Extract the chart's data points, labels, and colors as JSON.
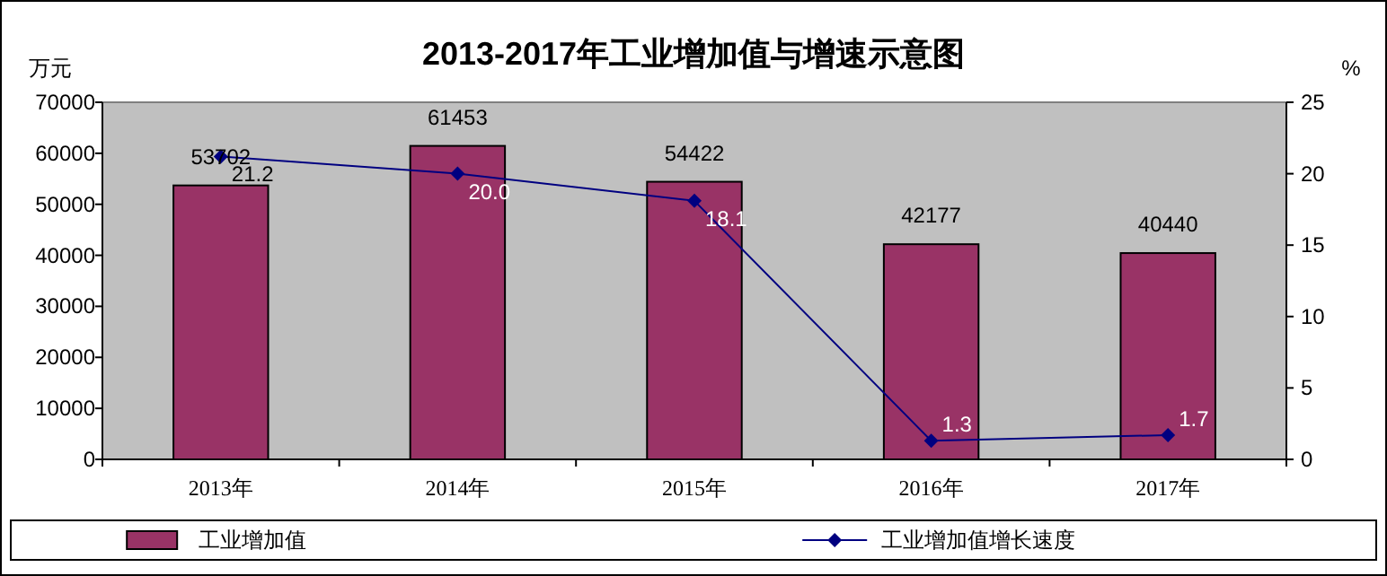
{
  "chart_data": {
    "type": "bar",
    "title": "2013-2017年工业增加值与增速示意图",
    "ylabel": "万元",
    "y2label": "%",
    "categories": [
      "2013年",
      "2014年",
      "2015年",
      "2016年",
      "2017年"
    ],
    "series": [
      {
        "name": "工业增加值",
        "color": "#993366",
        "values": [
          53702,
          61453,
          54422,
          42177,
          40440
        ]
      },
      {
        "name": "工业增加值增长速度",
        "type": "line",
        "axis": "y2",
        "color": "#000080",
        "marker": "diamond",
        "values": [
          21.2,
          20.0,
          18.1,
          1.3,
          1.7
        ],
        "value_labels": [
          "21.2",
          "20.0",
          "18.1",
          "1.3",
          "1.7"
        ]
      }
    ],
    "ylim": [
      0,
      70000
    ],
    "yticks": [
      0,
      10000,
      20000,
      30000,
      40000,
      50000,
      60000,
      70000
    ],
    "y2lim": [
      0,
      25
    ],
    "y2ticks": [
      0,
      5,
      10,
      15,
      20,
      25
    ],
    "data_labels": true,
    "legend": "bottom",
    "grid": false
  }
}
